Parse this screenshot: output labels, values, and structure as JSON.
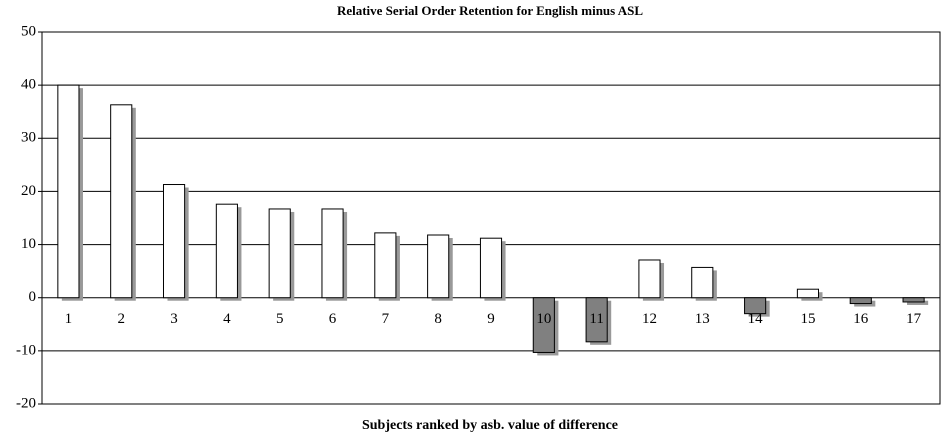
{
  "chart_data": {
    "type": "bar",
    "title": "Relative Serial Order Retention for English minus ASL",
    "x_label": "Subjects ranked by asb. value of difference",
    "categories": [
      "1",
      "2",
      "3",
      "4",
      "5",
      "6",
      "7",
      "8",
      "9",
      "10",
      "11",
      "12",
      "13",
      "14",
      "15",
      "16",
      "17"
    ],
    "values": [
      40,
      36.3,
      21.3,
      17.6,
      16.7,
      16.7,
      12.2,
      11.8,
      11.2,
      -10.3,
      -8.3,
      7.1,
      5.7,
      -3,
      1.6,
      -1.1,
      -0.8
    ],
    "positive_color": "#ffffff",
    "negative_color": "#808080",
    "ylim": [
      -20,
      50
    ],
    "yticks": [
      -20,
      -10,
      0,
      10,
      20,
      30,
      40,
      50
    ],
    "grid": true
  }
}
